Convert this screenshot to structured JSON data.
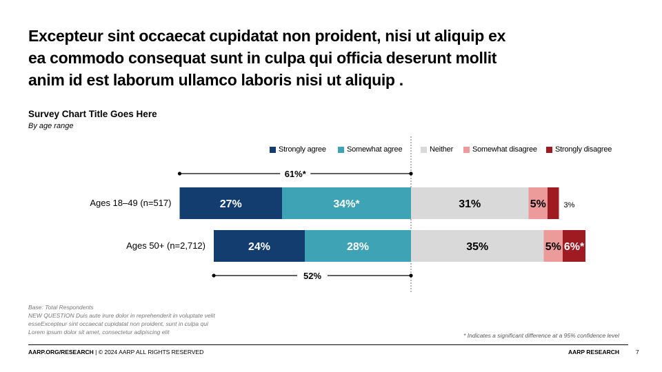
{
  "headline": "Excepteur sint occaecat cupidatat non proident, nisi ut aliquip ex ea commodo consequat sunt in culpa qui officia deserunt mollit anim id est laborum ullamco laboris nisi ut aliquip .",
  "chart_data": {
    "type": "bar",
    "orientation": "horizontal-stacked-diverging",
    "title": "Survey Chart Title Goes Here",
    "subtitle": "By age range",
    "categories": [
      "Ages 18–49 (n=517)",
      "Ages 50+ (n=2,712)"
    ],
    "series": [
      {
        "name": "Strongly agree",
        "color": "#123d6e",
        "values": [
          27,
          24
        ],
        "labels": [
          "27%",
          "24%"
        ]
      },
      {
        "name": "Somewhat agree",
        "color": "#3fa3b6",
        "values": [
          34,
          28
        ],
        "labels": [
          "34%*",
          "28%"
        ]
      },
      {
        "name": "Neither",
        "color": "#d9d9d9",
        "values": [
          31,
          35
        ],
        "labels": [
          "31%",
          "35%"
        ]
      },
      {
        "name": "Somewhat disagree",
        "color": "#ec9a9a",
        "values": [
          5,
          5
        ],
        "labels": [
          "5%",
          "5%"
        ]
      },
      {
        "name": "Strongly disagree",
        "color": "#9e1b22",
        "values": [
          3,
          6
        ],
        "labels": [
          "3%",
          "6%*"
        ]
      }
    ],
    "net_agree": [
      {
        "row": 0,
        "value": 61,
        "label": "61%*",
        "position": "above"
      },
      {
        "row": 1,
        "value": 52,
        "label": "52%",
        "position": "below"
      }
    ],
    "legend_position": "top"
  },
  "footnotes": {
    "base": "Base: Total Respondents",
    "question_line1": "NEW QUESTION Duis aute irure dolor in reprehenderit in voluptate velit",
    "question_line2": "esseExcepteur sint occaecat cupidatat non proident, sunt in culpa qui",
    "lorem": "Lorem ipsum dolor sit amet, consectetur adipiscing elit",
    "significance": "* Indicates a significant difference at a 95% confidence level"
  },
  "footer": {
    "left_bold": "AARP.ORG/RESEARCH",
    "left_rest": " | © 2024 AARP ALL RIGHTS RESERVED",
    "right": "AARP RESEARCH",
    "page_number": "7"
  }
}
